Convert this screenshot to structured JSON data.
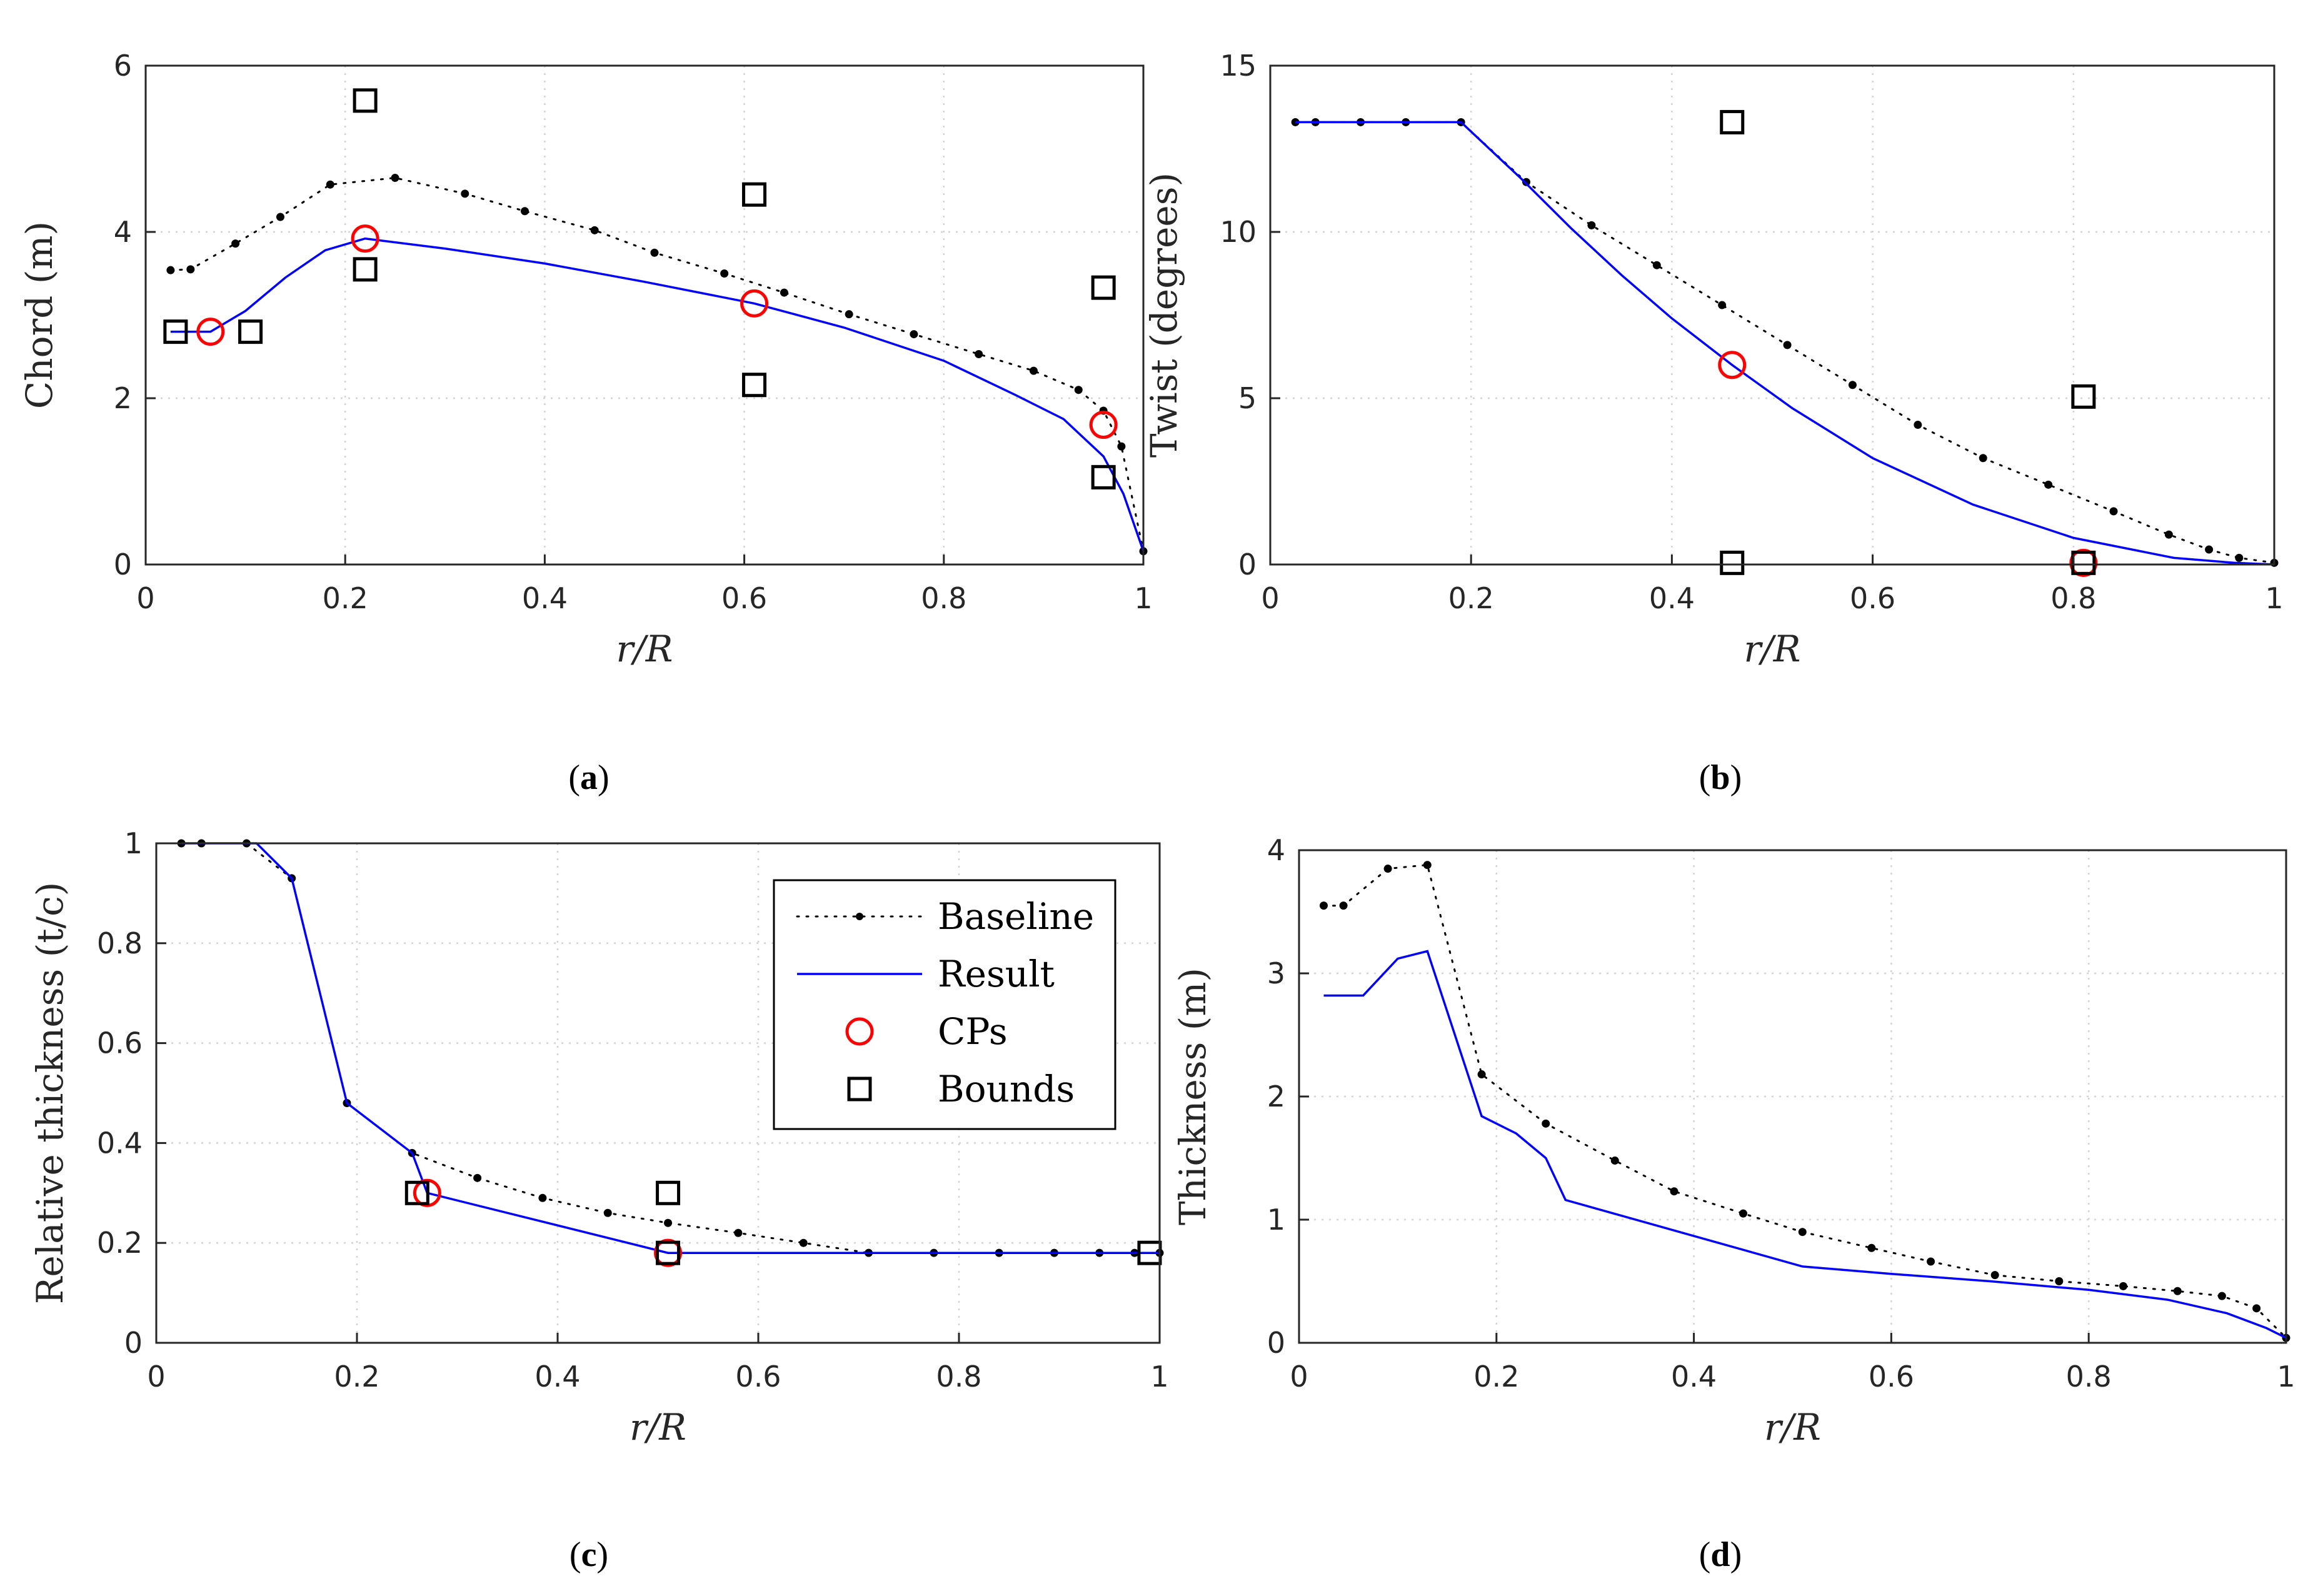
{
  "colors": {
    "baseline": "#000000",
    "result": "#0000ff",
    "cps": "#ff0000",
    "bounds": "#000000",
    "grid": "#d4d4d4",
    "axis": "#262626"
  },
  "legend": {
    "entries": [
      {
        "key": "baseline",
        "label": "Baseline"
      },
      {
        "key": "result",
        "label": "Result"
      },
      {
        "key": "cps",
        "label": "CPs"
      },
      {
        "key": "bounds",
        "label": "Bounds"
      }
    ]
  },
  "chart_data": [
    {
      "id": "a",
      "caption_text": "(a)",
      "caption_letter": "a",
      "type": "line",
      "xlabel": "r/R",
      "ylabel": "Chord (m)",
      "xlim": [
        0,
        1
      ],
      "ylim": [
        0,
        6
      ],
      "xticks": [
        0,
        0.2,
        0.4,
        0.6,
        0.8,
        1
      ],
      "xtick_labels": [
        "0",
        "0.2",
        "0.4",
        "0.6",
        "0.8",
        "1"
      ],
      "yticks": [
        0,
        2,
        4,
        6
      ],
      "ytick_labels": [
        "0",
        "2",
        "4",
        "6"
      ],
      "series": [
        {
          "name": "Baseline",
          "style": "dotted-markers",
          "x": [
            0.025,
            0.045,
            0.09,
            0.135,
            0.185,
            0.25,
            0.32,
            0.38,
            0.45,
            0.51,
            0.58,
            0.64,
            0.705,
            0.77,
            0.835,
            0.89,
            0.935,
            0.96,
            0.978,
            1.0
          ],
          "y": [
            3.54,
            3.55,
            3.86,
            4.18,
            4.57,
            4.65,
            4.46,
            4.25,
            4.02,
            3.75,
            3.5,
            3.27,
            3.01,
            2.77,
            2.53,
            2.33,
            2.1,
            1.85,
            1.42,
            0.16
          ]
        },
        {
          "name": "Result",
          "style": "solid",
          "x": [
            0.025,
            0.065,
            0.1,
            0.14,
            0.18,
            0.22,
            0.3,
            0.4,
            0.5,
            0.61,
            0.7,
            0.8,
            0.87,
            0.92,
            0.96,
            0.98,
            1.0
          ],
          "y": [
            2.8,
            2.8,
            3.05,
            3.45,
            3.78,
            3.92,
            3.8,
            3.62,
            3.4,
            3.14,
            2.85,
            2.45,
            2.05,
            1.75,
            1.3,
            0.85,
            0.16
          ]
        },
        {
          "name": "CPs",
          "style": "circle",
          "x": [
            0.065,
            0.22,
            0.61,
            0.96
          ],
          "y": [
            2.8,
            3.92,
            3.14,
            1.68
          ]
        },
        {
          "name": "Bounds",
          "style": "square",
          "x": [
            0.03,
            0.105,
            0.22,
            0.22,
            0.61,
            0.61,
            0.96,
            0.96
          ],
          "y": [
            2.8,
            2.8,
            5.58,
            3.55,
            4.45,
            2.16,
            3.33,
            1.05
          ]
        }
      ]
    },
    {
      "id": "b",
      "caption_text": "(b)",
      "caption_letter": "b",
      "type": "line",
      "xlabel": "r/R",
      "ylabel": "Twist (degrees)",
      "xlim": [
        0,
        1
      ],
      "ylim": [
        0,
        15
      ],
      "xticks": [
        0,
        0.2,
        0.4,
        0.6,
        0.8,
        1
      ],
      "xtick_labels": [
        "0",
        "0.2",
        "0.4",
        "0.6",
        "0.8",
        "1"
      ],
      "yticks": [
        0,
        5,
        10,
        15
      ],
      "ytick_labels": [
        "0",
        "5",
        "10",
        "15"
      ],
      "series": [
        {
          "name": "Baseline",
          "style": "dotted-markers",
          "x": [
            0.025,
            0.045,
            0.09,
            0.135,
            0.19,
            0.255,
            0.32,
            0.385,
            0.45,
            0.515,
            0.58,
            0.645,
            0.71,
            0.775,
            0.84,
            0.895,
            0.935,
            0.965,
            1.0
          ],
          "y": [
            13.3,
            13.3,
            13.3,
            13.3,
            13.3,
            11.5,
            10.2,
            9.0,
            7.8,
            6.6,
            5.4,
            4.2,
            3.2,
            2.4,
            1.6,
            0.9,
            0.45,
            0.2,
            0.05
          ]
        },
        {
          "name": "Result",
          "style": "solid",
          "x": [
            0.025,
            0.19,
            0.25,
            0.3,
            0.35,
            0.4,
            0.46,
            0.52,
            0.6,
            0.7,
            0.8,
            0.9,
            0.96,
            1.0
          ],
          "y": [
            13.3,
            13.3,
            11.6,
            10.1,
            8.7,
            7.4,
            6.0,
            4.7,
            3.2,
            1.8,
            0.8,
            0.2,
            0.05,
            0.0
          ]
        },
        {
          "name": "CPs",
          "style": "circle",
          "x": [
            0.46,
            0.81
          ],
          "y": [
            6.0,
            0.05
          ]
        },
        {
          "name": "Bounds",
          "style": "square",
          "x": [
            0.46,
            0.46,
            0.81,
            0.81
          ],
          "y": [
            13.3,
            0.05,
            5.05,
            0.05
          ]
        }
      ]
    },
    {
      "id": "c",
      "caption_text": "(c)",
      "caption_letter": "c",
      "type": "line",
      "xlabel": "r/R",
      "ylabel": "Relative thickness (t/c)",
      "xlim": [
        0,
        1
      ],
      "ylim": [
        0,
        1
      ],
      "xticks": [
        0,
        0.2,
        0.4,
        0.6,
        0.8,
        1
      ],
      "xtick_labels": [
        "0",
        "0.2",
        "0.4",
        "0.6",
        "0.8",
        "1"
      ],
      "yticks": [
        0,
        0.2,
        0.4,
        0.6,
        0.8,
        1
      ],
      "ytick_labels": [
        "0",
        "0.2",
        "0.4",
        "0.6",
        "0.8",
        "1"
      ],
      "series": [
        {
          "name": "Baseline",
          "style": "dotted-markers",
          "x": [
            0.025,
            0.045,
            0.09,
            0.135,
            0.19,
            0.255,
            0.32,
            0.385,
            0.45,
            0.51,
            0.58,
            0.645,
            0.71,
            0.775,
            0.84,
            0.895,
            0.94,
            0.975,
            1.0
          ],
          "y": [
            1.0,
            1.0,
            1.0,
            0.93,
            0.48,
            0.38,
            0.33,
            0.29,
            0.26,
            0.24,
            0.22,
            0.2,
            0.18,
            0.18,
            0.18,
            0.18,
            0.18,
            0.18,
            0.18
          ]
        },
        {
          "name": "Result",
          "style": "solid",
          "x": [
            0.025,
            0.1,
            0.135,
            0.19,
            0.255,
            0.27,
            0.51,
            1.0
          ],
          "y": [
            1.0,
            1.0,
            0.93,
            0.48,
            0.38,
            0.3,
            0.18,
            0.18
          ]
        },
        {
          "name": "CPs",
          "style": "circle",
          "x": [
            0.27,
            0.51
          ],
          "y": [
            0.3,
            0.18
          ]
        },
        {
          "name": "Bounds",
          "style": "square",
          "x": [
            0.26,
            0.51,
            0.51,
            0.99
          ],
          "y": [
            0.3,
            0.3,
            0.18,
            0.18
          ]
        }
      ]
    },
    {
      "id": "d",
      "caption_text": "(d)",
      "caption_letter": "d",
      "type": "line",
      "xlabel": "r/R",
      "ylabel": "Thickness (m)",
      "xlim": [
        0,
        1
      ],
      "ylim": [
        0,
        4
      ],
      "xticks": [
        0,
        0.2,
        0.4,
        0.6,
        0.8,
        1
      ],
      "xtick_labels": [
        "0",
        "0.2",
        "0.4",
        "0.6",
        "0.8",
        "1"
      ],
      "yticks": [
        0,
        1,
        2,
        3,
        4
      ],
      "ytick_labels": [
        "0",
        "1",
        "2",
        "3",
        "4"
      ],
      "series": [
        {
          "name": "Baseline",
          "style": "dotted-markers",
          "x": [
            0.025,
            0.045,
            0.09,
            0.13,
            0.185,
            0.25,
            0.32,
            0.38,
            0.45,
            0.51,
            0.58,
            0.64,
            0.705,
            0.77,
            0.835,
            0.89,
            0.935,
            0.97,
            1.0
          ],
          "y": [
            3.55,
            3.55,
            3.85,
            3.88,
            2.18,
            1.78,
            1.48,
            1.23,
            1.05,
            0.9,
            0.77,
            0.66,
            0.55,
            0.5,
            0.46,
            0.42,
            0.38,
            0.28,
            0.04
          ]
        },
        {
          "name": "Result",
          "style": "solid",
          "x": [
            0.025,
            0.065,
            0.1,
            0.13,
            0.185,
            0.2,
            0.22,
            0.25,
            0.27,
            0.51,
            0.6,
            0.7,
            0.8,
            0.88,
            0.94,
            0.98,
            1.0
          ],
          "y": [
            2.82,
            2.82,
            3.12,
            3.18,
            1.84,
            1.78,
            1.7,
            1.5,
            1.16,
            0.62,
            0.56,
            0.5,
            0.43,
            0.35,
            0.24,
            0.12,
            0.04
          ]
        }
      ]
    }
  ]
}
